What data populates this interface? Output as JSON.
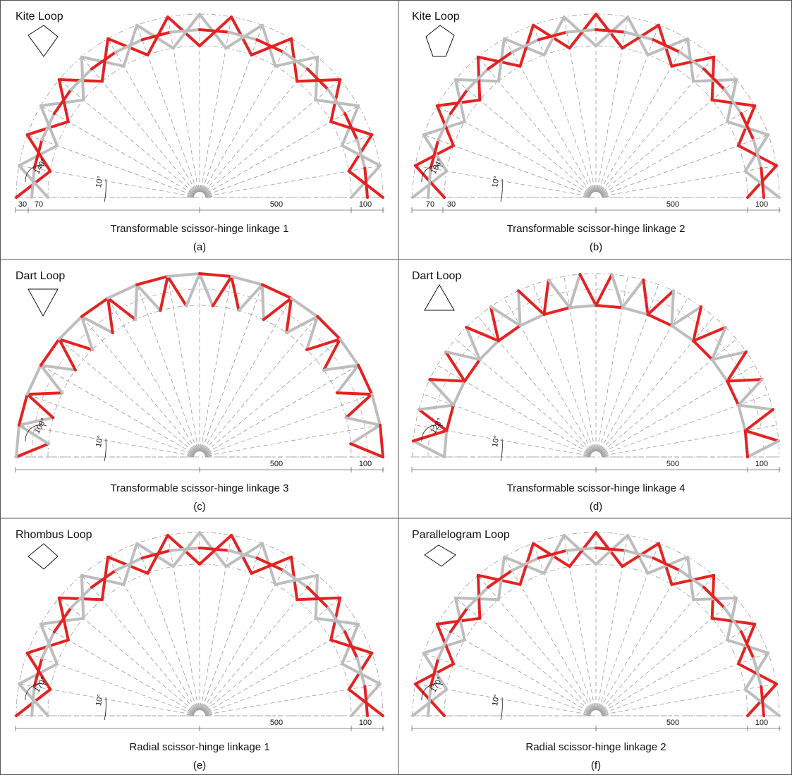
{
  "panels": [
    {
      "loop": "Kite Loop",
      "angle": "149°",
      "step": "10°",
      "dims": [
        "30",
        "70",
        "500",
        "100"
      ],
      "title": "Transformable scissor-hinge linkage 1",
      "label": "(a)"
    },
    {
      "loop": "Kite Loop",
      "angle": "164°",
      "step": "10°",
      "dims": [
        "70",
        "30",
        "500",
        "100"
      ],
      "title": "Transformable scissor-hinge linkage 2",
      "label": "(b)"
    },
    {
      "loop": "Dart Loop",
      "angle": "108°",
      "step": "10°",
      "dims": [
        "500",
        "100"
      ],
      "title": "Transformable scissor-hinge linkage 3",
      "label": "(c)"
    },
    {
      "loop": "Dart Loop",
      "angle": "123°",
      "step": "10°",
      "dims": [
        "500",
        "100"
      ],
      "title": "Transformable scissor-hinge linkage 4",
      "label": "(d)"
    },
    {
      "loop": "Rhombus Loop",
      "angle": "170°",
      "step": "10°",
      "dims": [
        "500",
        "100"
      ],
      "title": "Radial scissor-hinge linkage 1",
      "label": "(e)"
    },
    {
      "loop": "Parallelogram Loop",
      "angle": "170°",
      "step": "10°",
      "dims": [
        "500",
        "100"
      ],
      "title": "Radial scissor-hinge linkage 2",
      "label": "(f)"
    }
  ]
}
